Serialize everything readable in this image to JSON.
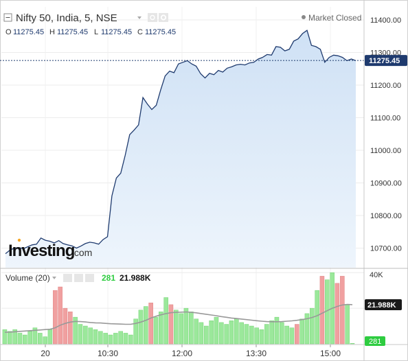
{
  "header": {
    "symbol_title": "Nifty 50, India, 5, NSE",
    "market_status": "Market Closed",
    "ohlc": [
      {
        "label": "O",
        "value": "11275.45"
      },
      {
        "label": "H",
        "value": "11275.45"
      },
      {
        "label": "L",
        "value": "11275.45"
      },
      {
        "label": "C",
        "value": "11275.45"
      }
    ]
  },
  "watermark": {
    "brand": "Investing",
    "suffix": ".com"
  },
  "volume_panel": {
    "title": "Volume (20)",
    "last_volume": "281",
    "ma_value": "21.988K",
    "axis_ticks": [
      "40K"
    ],
    "axis_badge_ma": "21.988K",
    "axis_badge_volume": "281"
  },
  "price_axis": {
    "ticks": [
      "11400.00",
      "11300.00",
      "11200.00",
      "11100.00",
      "11000.00",
      "10900.00",
      "10800.00",
      "10700.00"
    ],
    "last_price_badge": "11275.45"
  },
  "time_axis": {
    "ticks": [
      "20",
      "10:30",
      "12:00",
      "13:30",
      "15:00"
    ]
  },
  "colors": {
    "line": "#1e3a6e",
    "area_top": "#cfe1f5",
    "area_bottom": "#eef5fc",
    "volume_up": "#9be89b",
    "volume_down": "#f0a0a0",
    "ma_line": "#999999",
    "axis_text": "#333333",
    "badge_bg": "#1e3a6e",
    "badge_green": "#2ecc40"
  },
  "chart_data": {
    "type": "area",
    "price": {
      "x_ticks": [
        "20",
        "10:30",
        "12:00",
        "13:30",
        "15:00"
      ],
      "ylim": [
        10640,
        11440
      ],
      "values": [
        10683,
        10694,
        10700,
        10702,
        10698,
        10704,
        10710,
        10712,
        10731,
        10724,
        10721,
        10716,
        10723,
        10714,
        10710,
        10707,
        10700,
        10706,
        10714,
        10718,
        10716,
        10712,
        10726,
        10735,
        10860,
        10915,
        10930,
        10985,
        11048,
        11062,
        11078,
        11162,
        11142,
        11125,
        11138,
        11185,
        11228,
        11243,
        11238,
        11265,
        11270,
        11275,
        11265,
        11258,
        11235,
        11222,
        11236,
        11232,
        11245,
        11240,
        11252,
        11256,
        11262,
        11264,
        11262,
        11268,
        11270,
        11280,
        11285,
        11294,
        11292,
        11318,
        11316,
        11305,
        11310,
        11335,
        11342,
        11358,
        11368,
        11322,
        11318,
        11310,
        11270,
        11285,
        11292,
        11290,
        11285,
        11275,
        11280,
        11275
      ]
    },
    "volume": {
      "ylim": [
        0,
        42000
      ],
      "series": [
        {
          "name": "Volume",
          "values": [
            8000,
            7000,
            8000,
            6000,
            5000,
            7000,
            9000,
            6000,
            4000,
            8000,
            30000,
            32000,
            20000,
            18000,
            15000,
            11000,
            10000,
            9000,
            8000,
            7000,
            6000,
            5000,
            6000,
            7000,
            6000,
            5000,
            14000,
            19000,
            21000,
            23000,
            15000,
            18000,
            26000,
            22000,
            19000,
            17000,
            20000,
            18000,
            14000,
            12000,
            10000,
            13000,
            15000,
            12000,
            11000,
            13000,
            14000,
            12000,
            11000,
            10000,
            9000,
            8000,
            11000,
            13000,
            15000,
            12000,
            10000,
            9000,
            11000,
            14000,
            17000,
            20000,
            30000,
            38000,
            36000,
            40000,
            34000,
            38000,
            22000,
            281
          ]
        },
        {
          "name": "MA",
          "values": [
            6500,
            6600,
            6800,
            7000,
            7200,
            7400,
            7600,
            7800,
            8000,
            8200,
            9000,
            10500,
            11500,
            12200,
            12600,
            12500,
            12300,
            12000,
            11800,
            11700,
            11500,
            11300,
            11200,
            11100,
            11000,
            11000,
            11500,
            12200,
            13200,
            14500,
            15500,
            16300,
            17000,
            17500,
            17700,
            17800,
            17900,
            17700,
            17400,
            17000,
            16600,
            16200,
            15800,
            15300,
            14900,
            14500,
            14200,
            13900,
            13600,
            13300,
            13000,
            12700,
            12500,
            12400,
            12400,
            12500,
            12700,
            12900,
            13200,
            13600,
            14100,
            14800,
            15800,
            17200,
            18600,
            20000,
            21000,
            21800,
            22100,
            21988
          ]
        }
      ],
      "down_bars": [
        10,
        11,
        12,
        13,
        29,
        33,
        58,
        63,
        66,
        67
      ]
    }
  }
}
